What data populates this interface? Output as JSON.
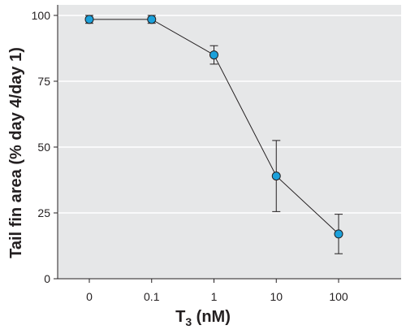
{
  "chart_data": {
    "type": "line",
    "x_categories": [
      "0",
      "0.1",
      "1",
      "10",
      "100"
    ],
    "series": [
      {
        "values": [
          98.5,
          98.5,
          85,
          39,
          17
        ],
        "error": [
          1.5,
          1.5,
          3.5,
          13.5,
          7.5
        ]
      }
    ],
    "y_ticks": [
      0,
      25,
      50,
      75,
      100
    ],
    "ylim": [
      0,
      104
    ],
    "ylabel": "Tail fin area (% day 4/day 1)",
    "xlabel_main": "T",
    "xlabel_sub": "3",
    "xlabel_rest": " (nM)",
    "grid": true,
    "colors": {
      "plot_bg": "#e6e7e8",
      "grid": "#ffffff",
      "marker": "#1ba1db",
      "line": "#231f20"
    }
  }
}
